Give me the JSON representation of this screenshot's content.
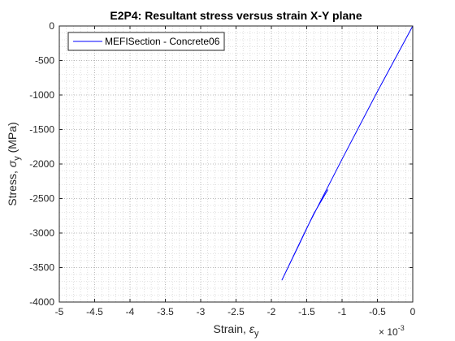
{
  "chart_data": {
    "type": "line",
    "title": "E2P4: Resultant stress versus strain X-Y plane",
    "xlabel": {
      "text": "Strain, ",
      "symbol": "ε",
      "subscript": "y"
    },
    "ylabel": {
      "text": "Stress, ",
      "symbol": "σ",
      "subscript": "y",
      "unit": " (MPa)"
    },
    "x_scale_exponent": {
      "base": "× 10",
      "power": "-3"
    },
    "xlim": [
      -5,
      0
    ],
    "ylim": [
      -4000,
      0
    ],
    "x_ticks": [
      -5,
      -4.5,
      -4,
      -3.5,
      -3,
      -2.5,
      -2,
      -1.5,
      -1,
      -0.5,
      0
    ],
    "y_ticks": [
      -4000,
      -3500,
      -3000,
      -2500,
      -2000,
      -1500,
      -1000,
      -500,
      0
    ],
    "grid": "major and minor (dotted)",
    "legend_position": "top-left",
    "series": [
      {
        "name": "MEFISection - Concrete06",
        "color": "#0000ff",
        "x": [
          0,
          -0.5,
          -1.0,
          -1.5,
          -1.85,
          -1.6,
          -1.4,
          -1.2
        ],
        "y": [
          0,
          -950,
          -1930,
          -2930,
          -3680,
          -3150,
          -2720,
          -2370
        ]
      }
    ]
  }
}
